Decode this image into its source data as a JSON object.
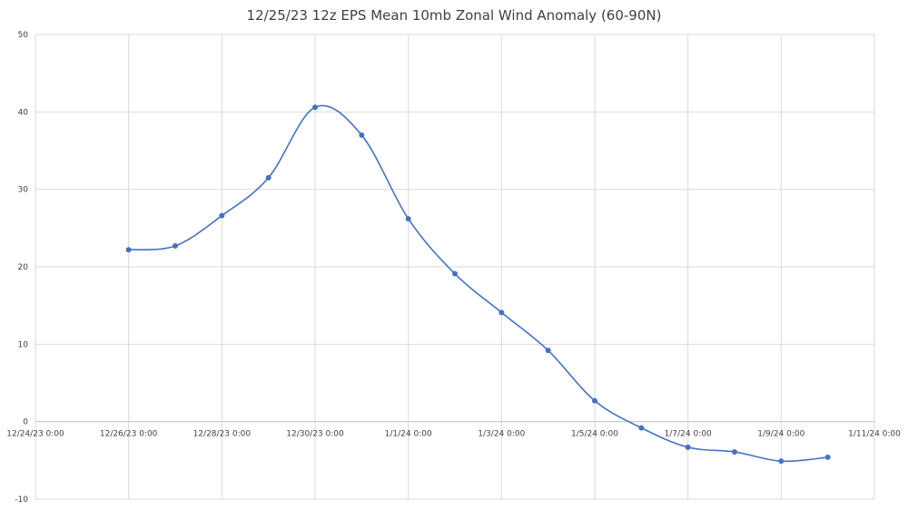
{
  "chart_data": {
    "type": "line",
    "title": "12/25/23 12z EPS Mean 10mb Zonal Wind Anomaly (60-90N)",
    "xlabel": "",
    "ylabel": "",
    "ylim": [
      -10,
      50
    ],
    "yticks": [
      "50",
      "40",
      "30",
      "20",
      "10",
      "0",
      "-10"
    ],
    "xticks": [
      "12/24/23 0:00",
      "12/26/23 0:00",
      "12/28/23 0:00",
      "12/30/23 0:00",
      "1/1/24 0:00",
      "1/3/24 0:00",
      "1/5/24 0:00",
      "1/7/24 0:00",
      "1/9/24 0:00",
      "1/11/24 0:00"
    ],
    "grid": true,
    "legend": "none",
    "smoothed": true,
    "series": [
      {
        "color": "#4472c4",
        "x": [
          "12/26/23 0:00",
          "12/27/23 0:00",
          "12/28/23 0:00",
          "12/29/23 0:00",
          "12/30/23 0:00",
          "12/31/23 0:00",
          "1/1/24 0:00",
          "1/2/24 0:00",
          "1/3/24 0:00",
          "1/4/24 0:00",
          "1/5/24 0:00",
          "1/6/24 0:00",
          "1/7/24 0:00",
          "1/8/24 0:00",
          "1/9/24 0:00",
          "1/10/24 0:00"
        ],
        "values": [
          22.2,
          22.7,
          26.6,
          31.5,
          40.6,
          37.0,
          26.2,
          19.1,
          14.1,
          9.2,
          2.7,
          -0.8,
          -3.3,
          -3.9,
          -5.1,
          -4.6
        ]
      }
    ]
  }
}
